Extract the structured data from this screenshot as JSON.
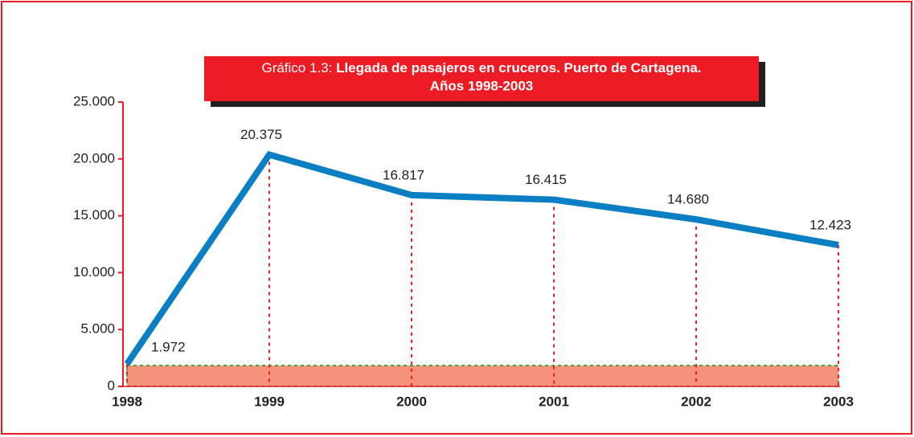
{
  "chart_data": {
    "type": "line",
    "title": [
      "Gráfico 1.3:",
      "Llegada de pasajeros en cruceros. Puerto de Cartagena.",
      "Años 1998-2003"
    ],
    "categories": [
      "1998",
      "1999",
      "2000",
      "2001",
      "2002",
      "2003"
    ],
    "series": [
      {
        "name": null,
        "color": "#0a7fc4",
        "values": [
          1972,
          20375,
          16817,
          16415,
          14680,
          12423
        ],
        "value_labels": [
          "1.972",
          "20.375",
          "16.817",
          "16.415",
          "14.680",
          "12.423"
        ]
      }
    ],
    "ylim": [
      0,
      25000
    ],
    "yticks": [
      0,
      {
        "value": 5000,
        "label": "5.000"
      },
      {
        "value": 10000,
        "label": "10.000"
      },
      {
        "value": 15000,
        "label": "15.000"
      },
      {
        "value": 20000,
        "label": "20.000"
      },
      {
        "value": 25000,
        "label": "25.000"
      }
    ],
    "grid": false
  }
}
